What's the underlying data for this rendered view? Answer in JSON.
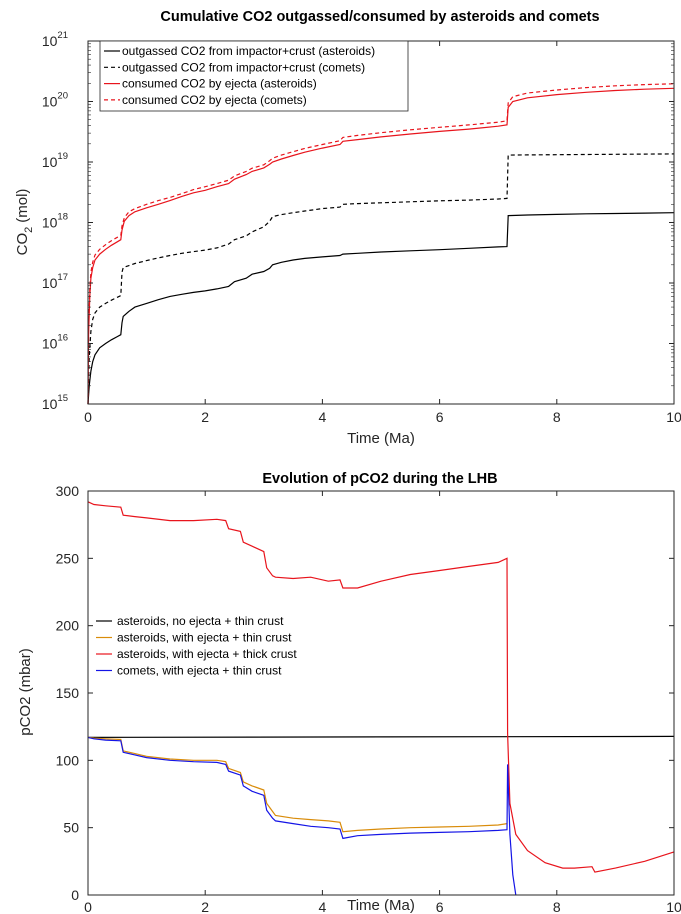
{
  "chart_data": [
    {
      "type": "line",
      "title": "Cumulative CO2 outgassed/consumed by asteroids and comets",
      "xlabel": "Time (Ma)",
      "ylabel": "CO",
      "ylabel_sub": "2",
      "ylabel_unit": "(mol)",
      "xlim": [
        0,
        10
      ],
      "ylim": [
        1000000000000000.0,
        1e+21
      ],
      "yscale": "log",
      "grid": false,
      "legend_position": "top-left",
      "x_ticks": [
        0,
        2,
        4,
        6,
        8,
        10
      ],
      "x_tick_labels": [
        "0",
        "2",
        "4",
        "6",
        "8",
        "10"
      ],
      "y_tick_base": "10",
      "y_ticks": [
        1000000000000000.0,
        1e+16,
        1e+17,
        1e+18,
        1e+19,
        1e+20,
        1e+21
      ],
      "y_tick_exponents": [
        "15",
        "16",
        "17",
        "18",
        "19",
        "20",
        "21"
      ],
      "series": [
        {
          "name": "outgassed CO2 from impactor+crust (asteroids)",
          "color": "#000000",
          "dash": "solid",
          "x": [
            0,
            0.02,
            0.05,
            0.08,
            0.12,
            0.2,
            0.3,
            0.4,
            0.5,
            0.56,
            0.58,
            0.6,
            0.7,
            0.8,
            1.0,
            1.2,
            1.4,
            1.6,
            1.8,
            2.0,
            2.2,
            2.4,
            2.5,
            2.7,
            2.8,
            3.0,
            3.1,
            3.15,
            3.3,
            3.5,
            3.7,
            4.0,
            4.3,
            4.35,
            4.6,
            5.0,
            5.5,
            6.0,
            6.5,
            7.0,
            7.15,
            7.17,
            7.5,
            8.0,
            8.5,
            9.0,
            9.5,
            10.0
          ],
          "y": [
            1000000000000000.0,
            2000000000000000.0,
            3500000000000000.0,
            5000000000000000.0,
            6500000000000000.0,
            8500000000000000.0,
            1e+16,
            1.15e+16,
            1.3e+16,
            1.4e+16,
            2.2e+16,
            2.8e+16,
            3.4e+16,
            4e+16,
            4.6e+16,
            5.3e+16,
            6e+16,
            6.5e+16,
            7e+16,
            7.4e+16,
            8e+16,
            8.8e+16,
            1.05e+17,
            1.2e+17,
            1.4e+17,
            1.55e+17,
            1.75e+17,
            2e+17,
            2.2e+17,
            2.4e+17,
            2.55e+17,
            2.7e+17,
            2.85e+17,
            3e+17,
            3.1e+17,
            3.25e+17,
            3.4e+17,
            3.55e+17,
            3.75e+17,
            3.95e+17,
            4e+17,
            1.3e+18,
            1.33e+18,
            1.36e+18,
            1.39e+18,
            1.41e+18,
            1.43e+18,
            1.45e+18
          ]
        },
        {
          "name": "outgassed CO2 from impactor+crust (comets)",
          "color": "#000000",
          "dash": "dashed",
          "x": [
            0,
            0.02,
            0.05,
            0.08,
            0.12,
            0.2,
            0.3,
            0.4,
            0.5,
            0.56,
            0.58,
            0.6,
            0.8,
            1.0,
            1.2,
            1.4,
            1.6,
            1.8,
            2.0,
            2.2,
            2.4,
            2.5,
            2.7,
            2.8,
            3.0,
            3.1,
            3.15,
            3.3,
            3.5,
            3.7,
            4.0,
            4.3,
            4.35,
            4.6,
            5.0,
            5.5,
            6.0,
            6.5,
            7.0,
            7.15,
            7.17,
            7.5,
            8.0,
            8.5,
            9.0,
            9.5,
            10.0
          ],
          "y": [
            1000000000000000.0,
            6000000000000000.0,
            1.6e+16,
            2.5e+16,
            3.2e+16,
            4e+16,
            4.6e+16,
            5.2e+16,
            5.8e+16,
            6.2e+16,
            1.5e+17,
            1.8e+17,
            2.1e+17,
            2.35e+17,
            2.6e+17,
            2.85e+17,
            3.1e+17,
            3.3e+17,
            3.5e+17,
            3.8e+17,
            4.4e+17,
            5.2e+17,
            6e+17,
            7e+17,
            8.5e+17,
            1.05e+18,
            1.25e+18,
            1.35e+18,
            1.45e+18,
            1.55e+18,
            1.7e+18,
            1.8e+18,
            2e+18,
            2.05e+18,
            2.12e+18,
            2.2e+18,
            2.28e+18,
            2.35e+18,
            2.45e+18,
            2.5e+18,
            1.3e+19,
            1.31e+19,
            1.32e+19,
            1.33e+19,
            1.34e+19,
            1.35e+19,
            1.36e+19
          ]
        },
        {
          "name": "consumed CO2 by ejecta (asteroids)",
          "color": "#e8141c",
          "dash": "solid",
          "x": [
            0,
            0.01,
            0.03,
            0.05,
            0.08,
            0.12,
            0.2,
            0.3,
            0.4,
            0.5,
            0.56,
            0.58,
            0.62,
            0.7,
            0.8,
            1.0,
            1.2,
            1.4,
            1.6,
            1.8,
            2.0,
            2.2,
            2.4,
            2.5,
            2.7,
            2.8,
            3.0,
            3.1,
            3.15,
            3.3,
            3.5,
            3.7,
            4.0,
            4.3,
            4.35,
            4.6,
            5.0,
            5.5,
            6.0,
            6.5,
            7.0,
            7.15,
            7.17,
            7.25,
            7.5,
            8.0,
            8.5,
            9.0,
            9.5,
            10.0
          ],
          "y": [
            1000000000000000.0,
            1.5e+16,
            6e+16,
            1.2e+17,
            1.8e+17,
            2.4e+17,
            3e+17,
            3.6e+17,
            4.2e+17,
            4.8e+17,
            5.2e+17,
            7.5e+17,
            1.05e+18,
            1.3e+18,
            1.5e+18,
            1.75e+18,
            2e+18,
            2.3e+18,
            2.7e+18,
            3.1e+18,
            3.4e+18,
            3.9e+18,
            4.4e+18,
            5.2e+18,
            6.2e+18,
            7e+18,
            8e+18,
            9.2e+18,
            1e+19,
            1.12e+19,
            1.28e+19,
            1.45e+19,
            1.7e+19,
            1.95e+19,
            2.2e+19,
            2.35e+19,
            2.6e+19,
            2.9e+19,
            3.2e+19,
            3.5e+19,
            3.9e+19,
            4.1e+19,
            8e+19,
            1e+20,
            1.15e+20,
            1.3e+20,
            1.42e+20,
            1.52e+20,
            1.6e+20,
            1.65e+20
          ]
        },
        {
          "name": "consumed CO2 by ejecta (comets)",
          "color": "#e8141c",
          "dash": "dashed",
          "x": [
            0,
            0.01,
            0.03,
            0.05,
            0.08,
            0.12,
            0.2,
            0.3,
            0.4,
            0.5,
            0.56,
            0.58,
            0.62,
            0.7,
            0.8,
            1.0,
            1.2,
            1.4,
            1.6,
            1.8,
            2.0,
            2.2,
            2.4,
            2.5,
            2.7,
            2.8,
            3.0,
            3.1,
            3.15,
            3.3,
            3.5,
            3.7,
            4.0,
            4.3,
            4.35,
            4.6,
            5.0,
            5.5,
            6.0,
            6.5,
            7.0,
            7.15,
            7.17,
            7.25,
            7.5,
            8.0,
            8.5,
            9.0,
            9.5,
            10.0
          ],
          "y": [
            1000000000000000.0,
            2e+16,
            8e+16,
            1.5e+17,
            2.2e+17,
            2.9e+17,
            3.6e+17,
            4.3e+17,
            5e+17,
            5.7e+17,
            6.1e+17,
            8.8e+17,
            1.2e+18,
            1.5e+18,
            1.7e+18,
            2e+18,
            2.3e+18,
            2.6e+18,
            3e+18,
            3.5e+18,
            3.9e+18,
            4.4e+18,
            5e+18,
            5.9e+18,
            7e+18,
            7.9e+18,
            9e+18,
            1.05e+19,
            1.15e+19,
            1.3e+19,
            1.48e+19,
            1.68e+19,
            1.95e+19,
            2.25e+19,
            2.55e+19,
            2.75e+19,
            3.05e+19,
            3.4e+19,
            3.75e+19,
            4.1e+19,
            4.55e+19,
            4.8e+19,
            9.5e+19,
            1.2e+20,
            1.38e+20,
            1.55e+20,
            1.7e+20,
            1.82e+20,
            1.9e+20,
            1.96e+20
          ]
        }
      ]
    },
    {
      "type": "line",
      "title": "Evolution of pCO2 during the LHB",
      "xlabel": "Time (Ma)",
      "ylabel": "pCO2 (mbar)",
      "xlim": [
        0,
        10
      ],
      "ylim": [
        0,
        300
      ],
      "grid": false,
      "legend_position": "center-left",
      "x_ticks": [
        0,
        2,
        4,
        6,
        8,
        10
      ],
      "x_tick_labels": [
        "0",
        "2",
        "4",
        "6",
        "8",
        "10"
      ],
      "y_ticks": [
        0,
        50,
        100,
        150,
        200,
        250,
        300
      ],
      "y_tick_labels": [
        "0",
        "50",
        "100",
        "150",
        "200",
        "250",
        "300"
      ],
      "series": [
        {
          "name": "asteroids, no ejecta + thin crust",
          "color": "#000000",
          "x": [
            0,
            10
          ],
          "y": [
            117,
            117.8
          ]
        },
        {
          "name": "asteroids, with ejecta + thin crust",
          "color": "#d98c0a",
          "x": [
            0,
            0.1,
            0.3,
            0.56,
            0.6,
            0.8,
            1.0,
            1.4,
            1.8,
            2.2,
            2.35,
            2.4,
            2.6,
            2.65,
            2.8,
            3.0,
            3.05,
            3.15,
            3.2,
            3.5,
            3.8,
            4.1,
            4.3,
            4.35,
            4.6,
            5.0,
            5.5,
            6.0,
            6.5,
            7.0,
            7.15
          ],
          "y": [
            117,
            116.5,
            116,
            115.5,
            107,
            105,
            103,
            101,
            100,
            100,
            99,
            94,
            91,
            84,
            81,
            78,
            68,
            62,
            59,
            57,
            56,
            55,
            54,
            47,
            48,
            49,
            50,
            50.5,
            51,
            52,
            53
          ]
        },
        {
          "name": "asteroids, with ejecta + thick crust",
          "color": "#e8141c",
          "x": [
            0,
            0.1,
            0.3,
            0.56,
            0.6,
            0.8,
            1.0,
            1.4,
            1.8,
            2.2,
            2.35,
            2.4,
            2.6,
            2.65,
            2.8,
            3.0,
            3.05,
            3.15,
            3.2,
            3.5,
            3.8,
            4.1,
            4.3,
            4.35,
            4.6,
            5.0,
            5.5,
            6.0,
            6.5,
            7.0,
            7.15,
            7.16,
            7.2,
            7.3,
            7.5,
            7.8,
            8.1,
            8.3,
            8.6,
            8.65,
            9.0,
            9.5,
            10.0
          ],
          "y": [
            292,
            290,
            289,
            288,
            282,
            281,
            280,
            278,
            278,
            279,
            278,
            272,
            270,
            262,
            259,
            255,
            243,
            237,
            236,
            235,
            236,
            233,
            234,
            228,
            228,
            233,
            238,
            241,
            244,
            247,
            250,
            120,
            68,
            45,
            33,
            24,
            20,
            20,
            21,
            17,
            20,
            25,
            32
          ]
        },
        {
          "name": "comets, with ejecta + thin crust",
          "color": "#1414e6",
          "x": [
            0,
            0.1,
            0.3,
            0.56,
            0.6,
            0.8,
            1.0,
            1.4,
            1.8,
            2.2,
            2.35,
            2.4,
            2.6,
            2.65,
            2.8,
            3.0,
            3.05,
            3.15,
            3.2,
            3.5,
            3.8,
            4.1,
            4.3,
            4.35,
            4.6,
            5.0,
            5.5,
            6.0,
            6.5,
            7.0,
            7.15,
            7.16,
            7.2,
            7.25,
            7.3
          ],
          "y": [
            117,
            116,
            115,
            114.5,
            106,
            104,
            102,
            100,
            99,
            98.5,
            97,
            92,
            89,
            81,
            77,
            74,
            63,
            57,
            55,
            53,
            51,
            50,
            49,
            42,
            44,
            45,
            46,
            46.5,
            47,
            48,
            48.5,
            97,
            45,
            15,
            0
          ]
        }
      ]
    }
  ]
}
